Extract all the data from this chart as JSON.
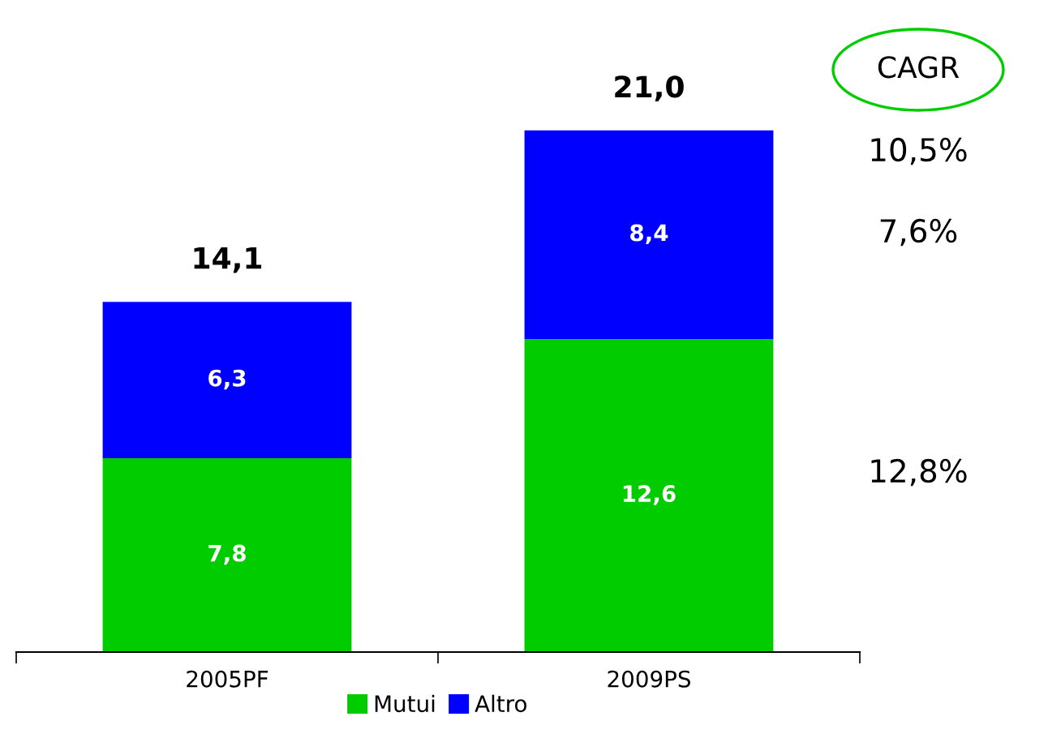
{
  "chart_data": {
    "type": "bar",
    "stacked": true,
    "categories": [
      "2005PF",
      "2009PS"
    ],
    "series": [
      {
        "name": "Mutui",
        "color": "#00cc00",
        "values": [
          7.8,
          12.6
        ],
        "value_labels": [
          "7,8",
          "12,6"
        ]
      },
      {
        "name": "Altro",
        "color": "#0000ff",
        "values": [
          6.3,
          8.4
        ],
        "value_labels": [
          "6,3",
          "8,4"
        ]
      }
    ],
    "totals": [
      "14,1",
      "21,0"
    ],
    "annotations": [
      "CAGR",
      "10,5%",
      "7,6%",
      "12,8%"
    ],
    "legend": "bottom",
    "grid": false
  }
}
